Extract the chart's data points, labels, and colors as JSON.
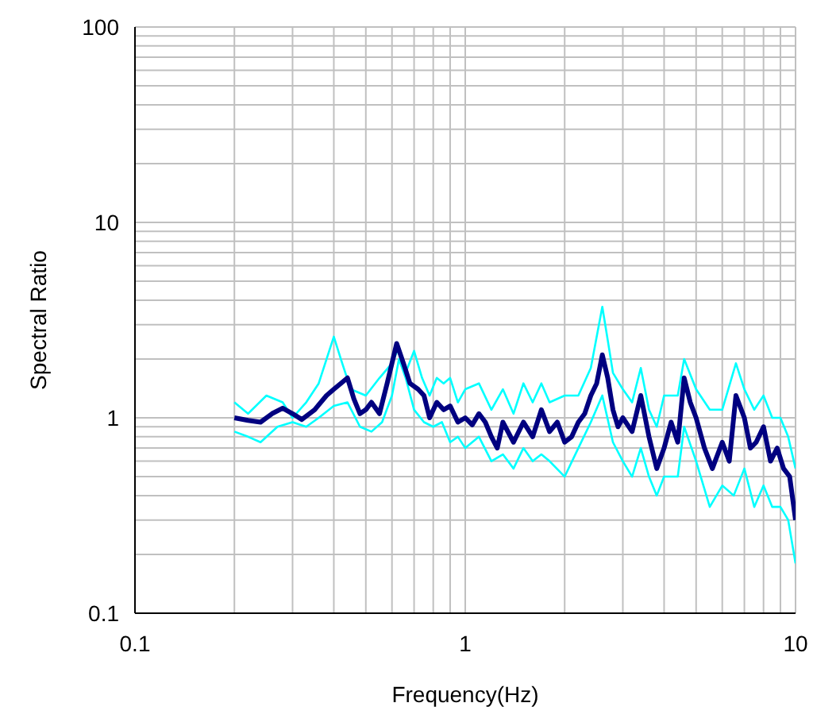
{
  "chart_data": {
    "type": "line",
    "xlabel": "Frequency(Hz)",
    "ylabel": "Spectral Ratio",
    "log": "xy",
    "grid": true,
    "marker": "none",
    "line_style": "solid",
    "xlim": [
      0.1,
      10
    ],
    "ylim": [
      0.1,
      100
    ],
    "xticks": [
      0.1,
      {
        "value": 0.2,
        "label": null
      },
      {
        "value": 0.3,
        "label": null
      },
      {
        "value": 0.4,
        "label": null
      },
      {
        "value": 0.5,
        "label": null
      },
      {
        "value": 0.6,
        "label": null
      },
      {
        "value": 0.7,
        "label": null
      },
      {
        "value": 0.8,
        "label": null
      },
      {
        "value": 0.9,
        "label": null
      },
      1,
      {
        "value": 2,
        "label": null
      },
      {
        "value": 3,
        "label": null
      },
      {
        "value": 4,
        "label": null
      },
      {
        "value": 5,
        "label": null
      },
      {
        "value": 6,
        "label": null
      },
      {
        "value": 7,
        "label": null
      },
      {
        "value": 8,
        "label": null
      },
      {
        "value": 9,
        "label": null
      },
      10
    ],
    "yticks": [
      0.1,
      {
        "value": 0.2,
        "label": null
      },
      {
        "value": 0.3,
        "label": null
      },
      {
        "value": 0.4,
        "label": null
      },
      {
        "value": 0.5,
        "label": null
      },
      {
        "value": 0.6,
        "label": null
      },
      {
        "value": 0.7,
        "label": null
      },
      {
        "value": 0.8,
        "label": null
      },
      {
        "value": 0.9,
        "label": null
      },
      1,
      {
        "value": 2,
        "label": null
      },
      {
        "value": 3,
        "label": null
      },
      {
        "value": 4,
        "label": null
      },
      {
        "value": 5,
        "label": null
      },
      {
        "value": 6,
        "label": null
      },
      {
        "value": 7,
        "label": null
      },
      {
        "value": 8,
        "label": null
      },
      {
        "value": 9,
        "label": null
      },
      10,
      {
        "value": 20,
        "label": null
      },
      {
        "value": 30,
        "label": null
      },
      {
        "value": 40,
        "label": null
      },
      {
        "value": 50,
        "label": null
      },
      {
        "value": 60,
        "label": null
      },
      {
        "value": 70,
        "label": null
      },
      {
        "value": 80,
        "label": null
      },
      {
        "value": 90,
        "label": null
      },
      100
    ],
    "series": [
      {
        "color": "#00ffff",
        "x": [
          0.2,
          0.22,
          0.25,
          0.28,
          0.3,
          0.33,
          0.36,
          0.4,
          0.42,
          0.45,
          0.5,
          0.55,
          0.6,
          0.63,
          0.66,
          0.7,
          0.74,
          0.78,
          0.82,
          0.86,
          0.9,
          0.95,
          1.0,
          1.1,
          1.2,
          1.3,
          1.4,
          1.5,
          1.6,
          1.7,
          1.8,
          2.0,
          2.2,
          2.4,
          2.6,
          2.7,
          2.8,
          3.0,
          3.2,
          3.4,
          3.6,
          3.8,
          4.0,
          4.4,
          4.6,
          5.0,
          5.5,
          6.0,
          6.6,
          7.0,
          7.5,
          8.0,
          8.5,
          9.0,
          9.5,
          10
        ],
        "values": [
          1.2,
          1.05,
          1.3,
          1.2,
          1.0,
          1.2,
          1.5,
          2.6,
          2.0,
          1.4,
          1.3,
          1.6,
          1.9,
          2.3,
          1.7,
          2.2,
          1.6,
          1.3,
          1.6,
          1.5,
          1.6,
          1.2,
          1.4,
          1.5,
          1.1,
          1.4,
          1.05,
          1.5,
          1.2,
          1.5,
          1.2,
          1.3,
          1.3,
          1.8,
          3.7,
          2.5,
          1.7,
          1.4,
          1.2,
          1.8,
          1.1,
          0.9,
          1.3,
          1.3,
          2.0,
          1.4,
          1.1,
          1.1,
          1.9,
          1.4,
          1.1,
          1.3,
          1.0,
          1.0,
          0.8,
          0.55
        ]
      },
      {
        "color": "#00ffff",
        "x": [
          0.2,
          0.22,
          0.24,
          0.27,
          0.3,
          0.33,
          0.36,
          0.4,
          0.44,
          0.48,
          0.52,
          0.56,
          0.6,
          0.63,
          0.66,
          0.7,
          0.75,
          0.8,
          0.85,
          0.9,
          0.95,
          1.0,
          1.1,
          1.2,
          1.3,
          1.4,
          1.5,
          1.6,
          1.7,
          1.8,
          2.0,
          2.2,
          2.4,
          2.6,
          2.8,
          3.0,
          3.2,
          3.4,
          3.6,
          3.8,
          4.0,
          4.4,
          4.6,
          5.0,
          5.5,
          6.0,
          6.5,
          7.0,
          7.5,
          8.0,
          8.5,
          9.0,
          9.5,
          10
        ],
        "values": [
          0.85,
          0.8,
          0.75,
          0.9,
          0.95,
          0.9,
          1.0,
          1.15,
          1.2,
          0.9,
          0.85,
          0.95,
          1.3,
          2.0,
          1.6,
          1.1,
          0.95,
          0.9,
          0.95,
          0.75,
          0.8,
          0.7,
          0.8,
          0.6,
          0.65,
          0.55,
          0.7,
          0.6,
          0.65,
          0.6,
          0.5,
          0.7,
          0.95,
          1.3,
          0.75,
          0.6,
          0.5,
          0.7,
          0.5,
          0.4,
          0.5,
          0.5,
          0.9,
          0.6,
          0.35,
          0.45,
          0.4,
          0.55,
          0.35,
          0.45,
          0.35,
          0.35,
          0.3,
          0.18
        ]
      },
      {
        "color": "#000080",
        "x": [
          0.2,
          0.22,
          0.24,
          0.26,
          0.28,
          0.3,
          0.32,
          0.35,
          0.38,
          0.4,
          0.42,
          0.44,
          0.46,
          0.48,
          0.5,
          0.52,
          0.55,
          0.58,
          0.62,
          0.65,
          0.68,
          0.72,
          0.75,
          0.78,
          0.82,
          0.86,
          0.9,
          0.95,
          1.0,
          1.05,
          1.1,
          1.15,
          1.2,
          1.25,
          1.3,
          1.4,
          1.5,
          1.6,
          1.7,
          1.8,
          1.9,
          2.0,
          2.1,
          2.2,
          2.3,
          2.4,
          2.5,
          2.6,
          2.7,
          2.8,
          2.9,
          3.0,
          3.2,
          3.4,
          3.6,
          3.8,
          4.0,
          4.2,
          4.4,
          4.6,
          4.8,
          5.0,
          5.3,
          5.6,
          6.0,
          6.3,
          6.6,
          7.0,
          7.3,
          7.6,
          8.0,
          8.4,
          8.8,
          9.2,
          9.6,
          10
        ],
        "values": [
          1.0,
          0.97,
          0.95,
          1.05,
          1.12,
          1.05,
          0.98,
          1.1,
          1.3,
          1.4,
          1.5,
          1.6,
          1.25,
          1.05,
          1.1,
          1.2,
          1.05,
          1.5,
          2.4,
          1.9,
          1.5,
          1.4,
          1.3,
          1.0,
          1.2,
          1.1,
          1.15,
          0.95,
          1.0,
          0.92,
          1.05,
          0.95,
          0.8,
          0.7,
          0.95,
          0.75,
          0.95,
          0.8,
          1.1,
          0.85,
          0.95,
          0.75,
          0.8,
          0.95,
          1.05,
          1.3,
          1.5,
          2.1,
          1.6,
          1.1,
          0.9,
          1.0,
          0.85,
          1.3,
          0.8,
          0.55,
          0.7,
          0.95,
          0.75,
          1.6,
          1.2,
          1.0,
          0.7,
          0.55,
          0.75,
          0.6,
          1.3,
          1.0,
          0.7,
          0.75,
          0.9,
          0.6,
          0.7,
          0.55,
          0.5,
          0.3
        ]
      }
    ]
  }
}
